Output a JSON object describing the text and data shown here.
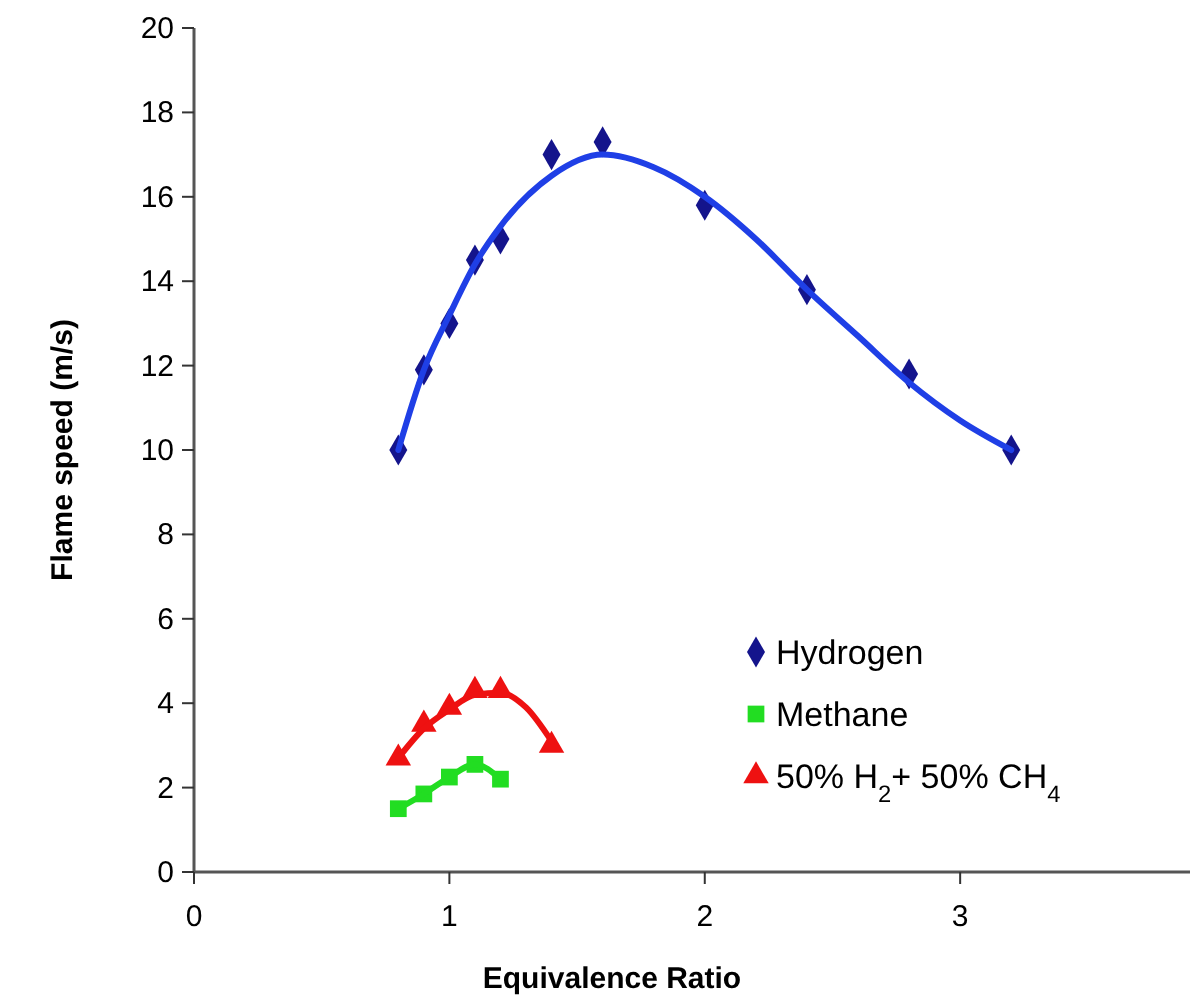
{
  "chart_data": {
    "type": "scatter",
    "xlabel": "Equivalence Ratio",
    "ylabel": "Flame speed (m/s)",
    "xlim": [
      0,
      3.9
    ],
    "xticks": [
      0,
      1,
      2,
      3
    ],
    "ylim": [
      0,
      20
    ],
    "yticks": [
      0,
      2,
      4,
      6,
      8,
      10,
      12,
      14,
      16,
      18,
      20
    ],
    "grid": false,
    "legend": "right",
    "series": [
      {
        "name": "Hydrogen",
        "color": "#14148c",
        "marker": "diamond",
        "x": [
          0.8,
          0.9,
          1.0,
          1.1,
          1.2,
          1.4,
          1.6,
          2.0,
          2.4,
          2.8,
          3.2
        ],
        "values": [
          10.0,
          11.9,
          13.0,
          14.5,
          15.0,
          17.0,
          17.3,
          15.8,
          13.8,
          11.8,
          10.0
        ]
      },
      {
        "name": "Methane",
        "color": "#22dd22",
        "marker": "square",
        "x": [
          0.8,
          0.9,
          1.0,
          1.1,
          1.2
        ],
        "values": [
          1.5,
          1.85,
          2.25,
          2.55,
          2.2
        ]
      },
      {
        "name": "50% H$_{2}$+ 50% CH$_{4}$",
        "color": "#ee1111",
        "marker": "triangle",
        "x": [
          0.8,
          0.9,
          1.0,
          1.1,
          1.2,
          1.4
        ],
        "values": [
          2.7,
          3.5,
          3.9,
          4.3,
          4.3,
          3.0
        ]
      },
      {
        "type": "line",
        "color": "#1f3fe6",
        "marker": "none",
        "x": [
          0.8,
          0.9,
          1.0,
          1.1,
          1.2,
          1.4,
          1.6,
          1.8,
          2.0,
          2.2,
          2.4,
          2.6,
          2.8,
          3.0,
          3.2
        ],
        "values": [
          10.0,
          11.9,
          13.2,
          14.4,
          15.3,
          16.5,
          17.0,
          16.7,
          16.0,
          15.0,
          13.8,
          12.7,
          11.6,
          10.7,
          10.0
        ]
      },
      {
        "type": "line",
        "color": "#22dd22",
        "marker": "none",
        "x": [
          0.8,
          0.9,
          1.0,
          1.1,
          1.2
        ],
        "values": [
          1.5,
          1.85,
          2.25,
          2.55,
          2.2
        ]
      },
      {
        "type": "line",
        "color": "#ee1111",
        "marker": "none",
        "x": [
          0.8,
          0.9,
          1.0,
          1.1,
          1.2,
          1.3,
          1.4
        ],
        "values": [
          2.7,
          3.4,
          3.85,
          4.2,
          4.25,
          3.9,
          3.1
        ]
      }
    ]
  }
}
